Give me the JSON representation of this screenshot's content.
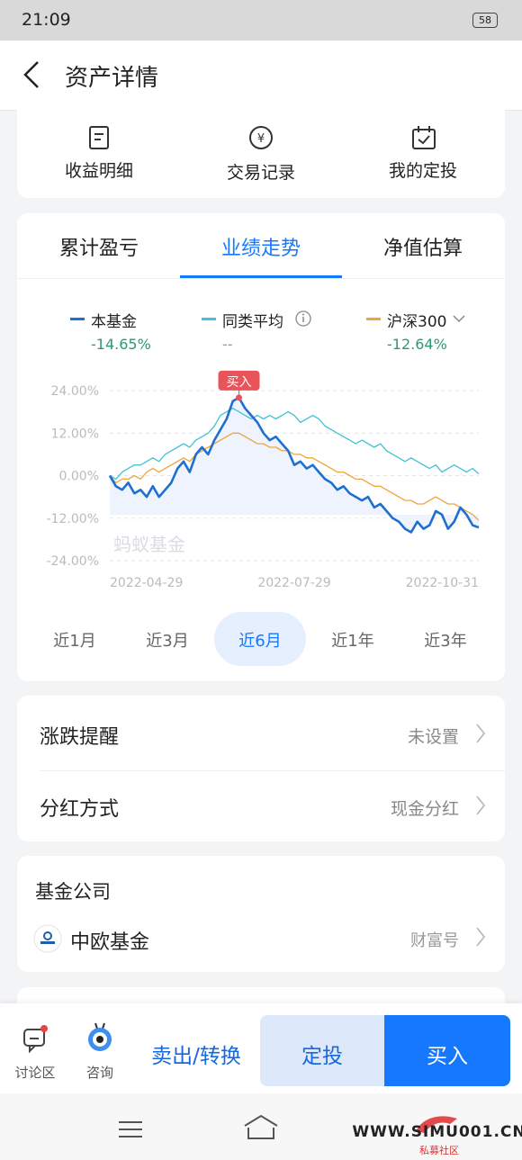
{
  "status_bar": {
    "time": "21:09",
    "battery": "58"
  },
  "header": {
    "title": "资产详情"
  },
  "shortcuts": [
    "收益明细",
    "交易记录",
    "我的定投"
  ],
  "tabs": [
    "累计盈亏",
    "业绩走势",
    "净值估算"
  ],
  "active_tab": 1,
  "chart_data": {
    "type": "line",
    "watermark": "蚂蚁基金",
    "marker_label": "买入",
    "categories": [
      "2022-04-29",
      null,
      null,
      null,
      null,
      null,
      null,
      null,
      null,
      null,
      null,
      null,
      null,
      null,
      null,
      null,
      null,
      null,
      null,
      null,
      null,
      null,
      null,
      null,
      null,
      null,
      null,
      null,
      null,
      null,
      "2022-07-29",
      null,
      null,
      null,
      null,
      null,
      null,
      null,
      null,
      null,
      null,
      null,
      null,
      null,
      null,
      null,
      null,
      null,
      null,
      null,
      null,
      null,
      null,
      null,
      null,
      null,
      null,
      null,
      null,
      null,
      "2022-10-31"
    ],
    "series": [
      {
        "name": "本基金",
        "color": "#1f6fd1",
        "summary": "-14.65%",
        "values": [
          0,
          -3,
          -4,
          -2,
          -5,
          -4,
          -6,
          -3,
          -6,
          -4,
          -2,
          2,
          4,
          1,
          6,
          8,
          6,
          10,
          13,
          16,
          21,
          22,
          19,
          17,
          15,
          12,
          10,
          11,
          9,
          7,
          3,
          4,
          2,
          3,
          1,
          -1,
          -2,
          -4,
          -3,
          -5,
          -6,
          -7,
          -6,
          -9,
          -8,
          -10,
          -12,
          -13,
          -15,
          -16,
          -13,
          -15,
          -14,
          -10,
          -11,
          -15,
          -13,
          -9,
          -11,
          -14,
          -14.65
        ]
      },
      {
        "name": "同类平均",
        "color": "#3fc3d6",
        "summary": "--",
        "values": [
          0,
          -1,
          1,
          2,
          3,
          3,
          4,
          5,
          4,
          6,
          7,
          8,
          9,
          8,
          10,
          11,
          12,
          14,
          17,
          18,
          19,
          18,
          17,
          16,
          17,
          16,
          17,
          16,
          17,
          18,
          17,
          15,
          16,
          17,
          16,
          14,
          13,
          12,
          11,
          10,
          9,
          10,
          9,
          8,
          9,
          7,
          6,
          5,
          4,
          5,
          4,
          3,
          2,
          3,
          1,
          2,
          3,
          2,
          1,
          2,
          0.5
        ]
      },
      {
        "name": "沪深300",
        "color": "#f0a43a",
        "summary": "-12.64%",
        "values": [
          0,
          -2,
          -1,
          -1,
          0,
          -1,
          1,
          2,
          1,
          2,
          3,
          4,
          5,
          4,
          6,
          7,
          8,
          9,
          10,
          11,
          12,
          12,
          11,
          10,
          9,
          9,
          8,
          8,
          7,
          7,
          6,
          6,
          5,
          5,
          4,
          3,
          2,
          1,
          1,
          0,
          -1,
          -1,
          -2,
          -3,
          -3,
          -4,
          -5,
          -6,
          -7,
          -7,
          -8,
          -8,
          -7,
          -6,
          -7,
          -8,
          -8,
          -9,
          -10,
          -11,
          -12.64
        ]
      }
    ],
    "ylim": [
      -24,
      24
    ],
    "yticks": [
      {
        "value": 24,
        "label": "24.00%"
      },
      {
        "value": 12,
        "label": "12.00%"
      },
      {
        "value": 0,
        "label": "0.00%"
      },
      {
        "value": -12,
        "label": "-12.00%"
      },
      {
        "value": -24,
        "label": "-24.00%"
      }
    ],
    "grid": true
  },
  "periods": [
    "近1月",
    "近3月",
    "近6月",
    "近1年",
    "近3年"
  ],
  "active_period": 2,
  "settings_rows": [
    {
      "label": "涨跌提醒",
      "value": "未设置"
    },
    {
      "label": "分红方式",
      "value": "现金分红"
    }
  ],
  "fund_company": {
    "title": "基金公司",
    "name": "中欧基金",
    "tag": "财富号"
  },
  "bottom_bar": {
    "discuss": "讨论区",
    "consult": "咨询",
    "sell": "卖出/转换",
    "auto_invest": "定投",
    "buy": "买入"
  },
  "watermark": {
    "url": "WWW.SIMU001.CN",
    "name": "私募社区"
  }
}
